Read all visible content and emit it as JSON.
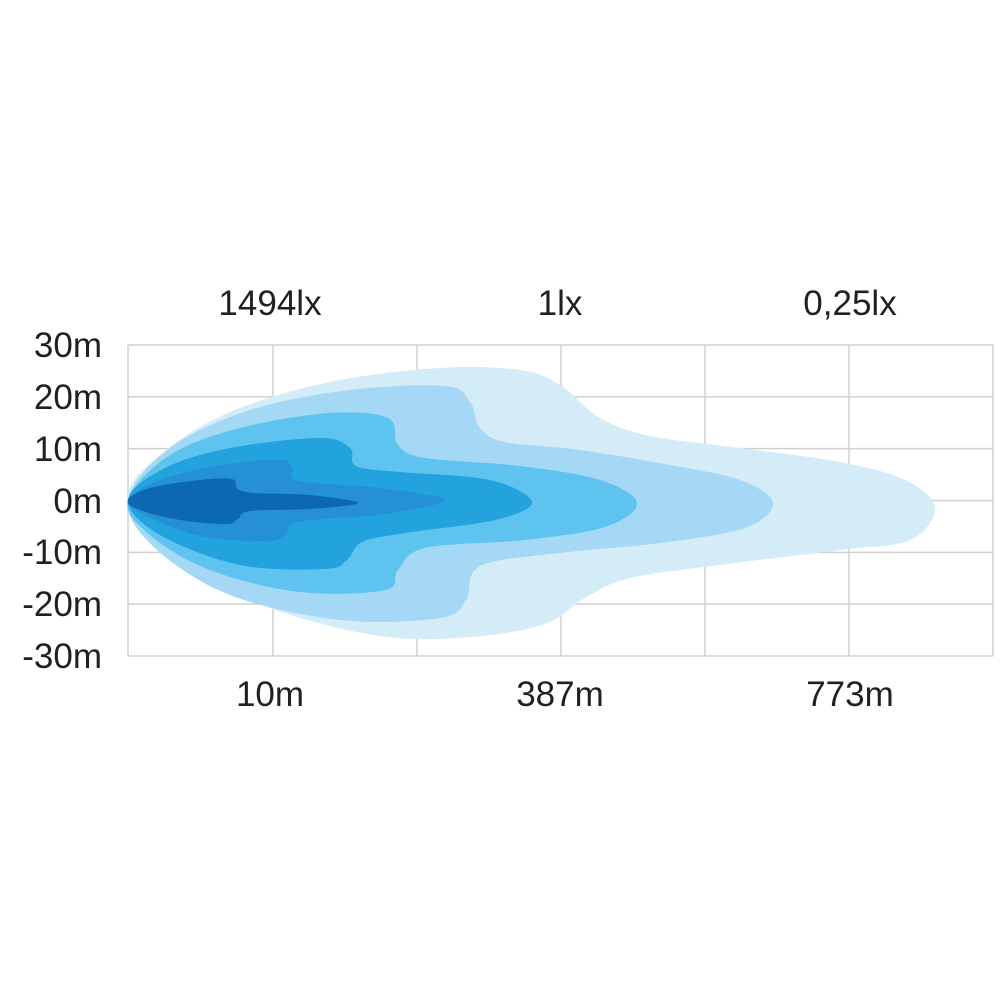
{
  "chart_data": {
    "type": "area",
    "title": "",
    "top_labels": [
      "1494lx",
      "1lx",
      "0,25lx"
    ],
    "bottom_labels": [
      "10m",
      "387m",
      "773m"
    ],
    "y_ticks": [
      "30m",
      "20m",
      "10m",
      "0m",
      "-10m",
      "-20m",
      "-30m"
    ],
    "ylim": [
      -30,
      30
    ],
    "grid": true,
    "contour_levels": 6,
    "colors": [
      "#d4ebf8",
      "#a4d8f4",
      "#5fc3ef",
      "#23a3dd",
      "#2690d4",
      "#0c68b3"
    ],
    "grid_color": "#d0d0d0"
  }
}
